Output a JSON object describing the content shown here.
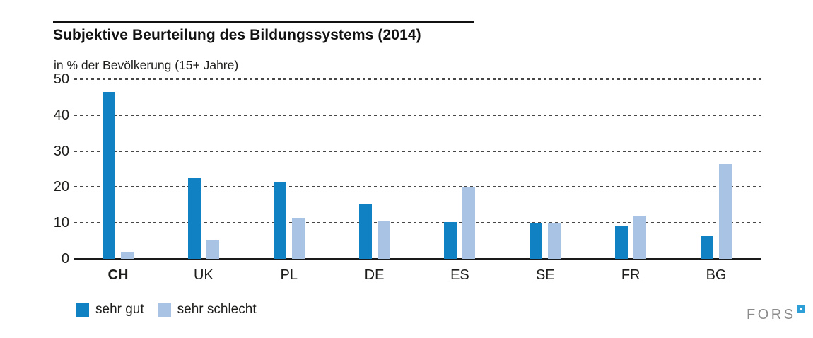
{
  "header": {
    "title": "Subjektive Beurteilung des Bildungssystems (2014)",
    "subtitle": "in % der Bevölkerung (15+ Jahre)"
  },
  "chart_data": {
    "type": "bar",
    "title": "Subjektive Beurteilung des Bildungssystems (2014)",
    "subtitle": "in % der Bevölkerung (15+ Jahre)",
    "categories": [
      "CH",
      "UK",
      "PL",
      "DE",
      "ES",
      "SE",
      "FR",
      "BG"
    ],
    "series": [
      {
        "name": "sehr gut",
        "color": "#1081C3",
        "values": [
          46.5,
          22.5,
          21.3,
          15.3,
          10.3,
          10,
          9.3,
          6.3
        ]
      },
      {
        "name": "sehr schlecht",
        "color": "#A9C3E5",
        "values": [
          2,
          5.2,
          11.5,
          10.6,
          20,
          10,
          12,
          26.4
        ]
      }
    ],
    "xlabel": "",
    "ylabel": "in % der Bevölkerung (15+ Jahre)",
    "ylim": [
      0,
      50
    ],
    "yticks": [
      0,
      10,
      20,
      30,
      40,
      50
    ],
    "grid": "horizontal-dashed",
    "legend_position": "bottom-left",
    "highlight_category": "CH"
  },
  "legend": {
    "items": [
      {
        "label": "sehr gut",
        "color": "#1081C3"
      },
      {
        "label": "sehr schlecht",
        "color": "#A9C3E5"
      }
    ]
  },
  "footer": {
    "logo_text": "FORS"
  },
  "colors": {
    "sehr_gut": "#1081C3",
    "sehr_schlecht": "#A9C3E5",
    "logo_square": "#2F9FD8",
    "logo_text": "#8B8B8B"
  }
}
